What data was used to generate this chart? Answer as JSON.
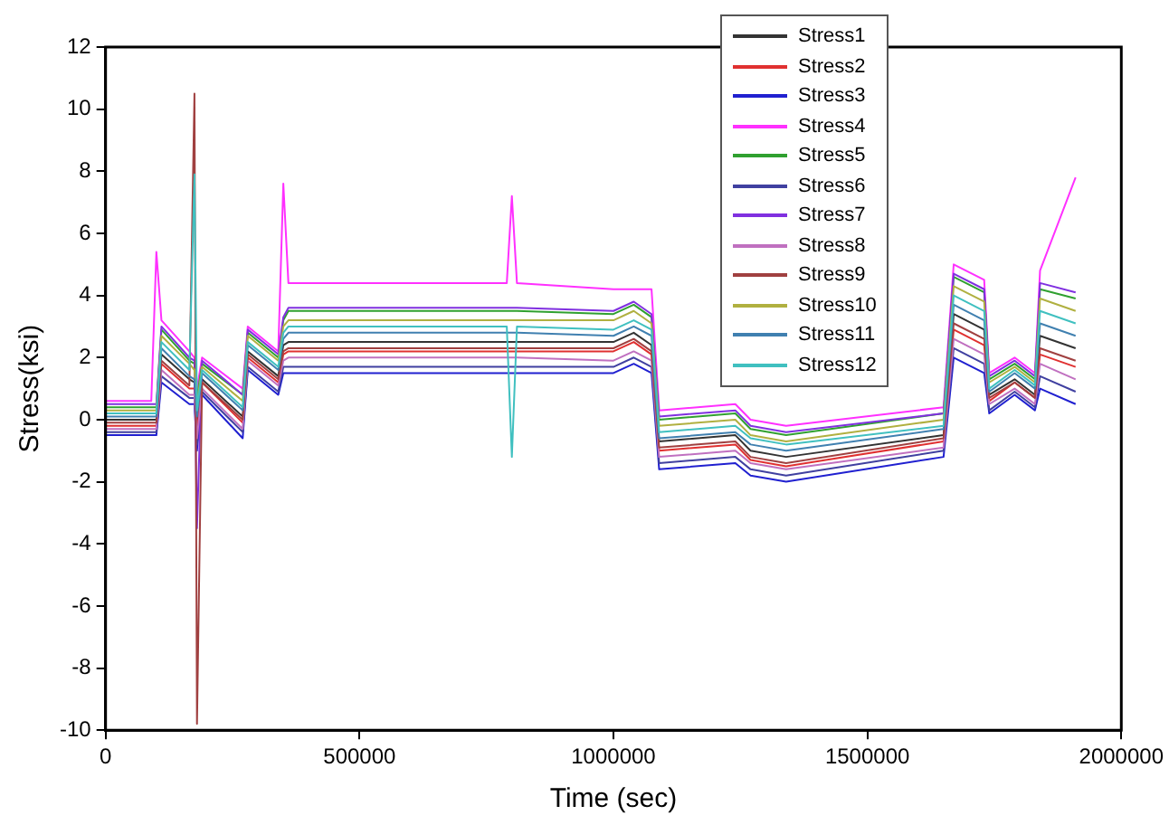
{
  "chart_data": {
    "type": "line",
    "xlabel": "Time (sec)",
    "ylabel": "Stress(ksi)",
    "x": [
      0,
      90000,
      100000,
      110000,
      165000,
      175000,
      180000,
      190000,
      270000,
      280000,
      340000,
      350000,
      360000,
      600000,
      790000,
      800000,
      810000,
      1000000,
      1040000,
      1075000,
      1090000,
      1240000,
      1270000,
      1340000,
      1650000,
      1670000,
      1730000,
      1740000,
      1790000,
      1830000,
      1840000,
      1910000
    ],
    "xlim": [
      0,
      2000000
    ],
    "xticks": [
      0,
      500000,
      1000000,
      1500000,
      2000000
    ],
    "ylim": [
      -10,
      12
    ],
    "yticks": [
      -10,
      -8,
      -6,
      -4,
      -2,
      0,
      2,
      4,
      6,
      8,
      10,
      12
    ],
    "grid": false,
    "legend": "top right",
    "marker": "none",
    "line_style": "solid",
    "series": [
      {
        "name": "Stress1",
        "color": "#333333",
        "values": [
          0.0,
          0.0,
          0.0,
          2.1,
          1.3,
          1.2,
          -0.1,
          1.3,
          0.1,
          2.2,
          1.4,
          2.4,
          2.5,
          2.5,
          2.5,
          2.5,
          2.5,
          2.5,
          2.8,
          2.4,
          -0.7,
          -0.5,
          -1.0,
          -1.2,
          -0.5,
          3.4,
          2.9,
          0.8,
          1.3,
          0.8,
          2.7,
          2.3
        ]
      },
      {
        "name": "Stress2",
        "color": "#e03030",
        "values": [
          -0.2,
          -0.2,
          -0.2,
          1.8,
          1.0,
          1.0,
          -0.4,
          1.2,
          -0.1,
          2.0,
          1.2,
          2.1,
          2.2,
          2.2,
          2.2,
          2.2,
          2.2,
          2.2,
          2.5,
          2.1,
          -1.0,
          -0.8,
          -1.3,
          -1.5,
          -0.7,
          2.9,
          2.4,
          0.6,
          1.2,
          0.7,
          2.1,
          1.7
        ]
      },
      {
        "name": "Stress3",
        "color": "#2020d0",
        "values": [
          -0.5,
          -0.5,
          -0.5,
          1.2,
          0.5,
          0.5,
          -1,
          0.8,
          -0.6,
          1.6,
          0.8,
          1.5,
          1.5,
          1.5,
          1.5,
          1.5,
          1.5,
          1.5,
          1.8,
          1.5,
          -1.6,
          -1.4,
          -1.8,
          -2.0,
          -1.2,
          2.0,
          1.5,
          0.2,
          0.8,
          0.3,
          1.0,
          0.5
        ]
      },
      {
        "name": "Stress4",
        "color": "#ff30ff",
        "values": [
          0.6,
          0.6,
          5.4,
          3.2,
          2.2,
          2.0,
          1.0,
          2.0,
          1.0,
          3.0,
          2.2,
          7.6,
          4.4,
          4.4,
          4.4,
          7.2,
          4.4,
          4.2,
          4.2,
          4.2,
          0.3,
          0.5,
          0,
          -0.2,
          0.4,
          5.0,
          4.5,
          1.5,
          2.0,
          1.5,
          4.8,
          7.8
        ]
      },
      {
        "name": "Stress5",
        "color": "#30a030",
        "values": [
          0.4,
          0.4,
          0.4,
          2.9,
          1.9,
          1.8,
          0.7,
          1.8,
          0.8,
          2.8,
          2.0,
          3.2,
          3.5,
          3.5,
          3.5,
          3.5,
          3.5,
          3.4,
          3.7,
          3.3,
          0,
          0.2,
          -0.3,
          -0.5,
          0.2,
          4.6,
          4.1,
          1.3,
          1.8,
          1.3,
          4.2,
          3.9
        ]
      },
      {
        "name": "Stress6",
        "color": "#4040a0",
        "values": [
          -0.4,
          -0.4,
          -0.4,
          1.4,
          0.7,
          0.7,
          -0.8,
          0.9,
          -0.4,
          1.7,
          0.9,
          1.7,
          1.7,
          1.7,
          1.7,
          1.7,
          1.7,
          1.7,
          2.0,
          1.7,
          -1.4,
          -1.2,
          -1.6,
          -1.8,
          -1.0,
          2.3,
          1.8,
          0.3,
          0.9,
          0.4,
          1.4,
          0.9
        ]
      },
      {
        "name": "Stress7",
        "color": "#8030e0",
        "values": [
          0.5,
          0.5,
          0.5,
          3.0,
          2.0,
          1.9,
          -3.5,
          1.9,
          0.8,
          2.9,
          2.1,
          3.3,
          3.6,
          3.6,
          3.6,
          3.6,
          3.6,
          3.5,
          3.8,
          3.4,
          0.1,
          0.3,
          -0.2,
          -0.4,
          0.2,
          4.7,
          4.2,
          1.4,
          1.9,
          1.4,
          4.4,
          4.1
        ]
      },
      {
        "name": "Stress8",
        "color": "#c070c0",
        "values": [
          -0.3,
          -0.3,
          -0.3,
          1.6,
          0.8,
          0.8,
          -0.6,
          1.0,
          -0.3,
          1.9,
          1.1,
          1.9,
          2.0,
          2.0,
          2.0,
          2.0,
          2.0,
          1.9,
          2.2,
          1.9,
          -1.2,
          -1.0,
          -1.4,
          -1.6,
          -0.9,
          2.6,
          2.1,
          0.5,
          1.0,
          0.5,
          1.8,
          1.3
        ]
      },
      {
        "name": "Stress9",
        "color": "#a04040",
        "values": [
          -0.1,
          -0.1,
          -0.1,
          1.9,
          1.1,
          10.5,
          -9.8,
          1.2,
          0,
          2.1,
          1.3,
          2.2,
          2.3,
          2.3,
          2.3,
          2.3,
          2.3,
          2.3,
          2.6,
          2.2,
          -0.9,
          -0.7,
          -1.2,
          -1.4,
          -0.6,
          3.1,
          2.6,
          0.7,
          1.2,
          0.7,
          2.3,
          1.9
        ]
      },
      {
        "name": "Stress10",
        "color": "#b0b040",
        "values": [
          0.3,
          0.3,
          0.3,
          2.7,
          1.8,
          1.6,
          0.5,
          1.7,
          0.6,
          2.7,
          1.9,
          3.0,
          3.2,
          3.2,
          3.2,
          3.2,
          3.2,
          3.2,
          3.5,
          3.1,
          -0.2,
          0,
          -0.5,
          -0.7,
          0,
          4.3,
          3.8,
          1.2,
          1.7,
          1.2,
          3.9,
          3.5
        ]
      },
      {
        "name": "Stress11",
        "color": "#4080b0",
        "values": [
          0.1,
          0.1,
          0.1,
          2.3,
          1.4,
          1.3,
          0.1,
          1.5,
          0.3,
          2.4,
          1.6,
          2.6,
          2.8,
          2.8,
          2.8,
          2.8,
          2.8,
          2.7,
          3.0,
          2.7,
          -0.6,
          -0.4,
          -0.8,
          -1.0,
          -0.3,
          3.7,
          3.2,
          0.9,
          1.5,
          1.0,
          3.1,
          2.7
        ]
      },
      {
        "name": "Stress12",
        "color": "#40c0c0",
        "values": [
          0.2,
          0.2,
          0.2,
          2.5,
          1.6,
          7.9,
          0.3,
          1.6,
          0.4,
          2.5,
          1.7,
          2.8,
          3.0,
          3.0,
          3.0,
          -1.2,
          3.0,
          2.9,
          3.2,
          2.9,
          -0.4,
          -0.2,
          -0.6,
          -0.8,
          -0.2,
          4.0,
          3.5,
          1.0,
          1.6,
          1.1,
          3.5,
          3.1
        ]
      }
    ]
  }
}
